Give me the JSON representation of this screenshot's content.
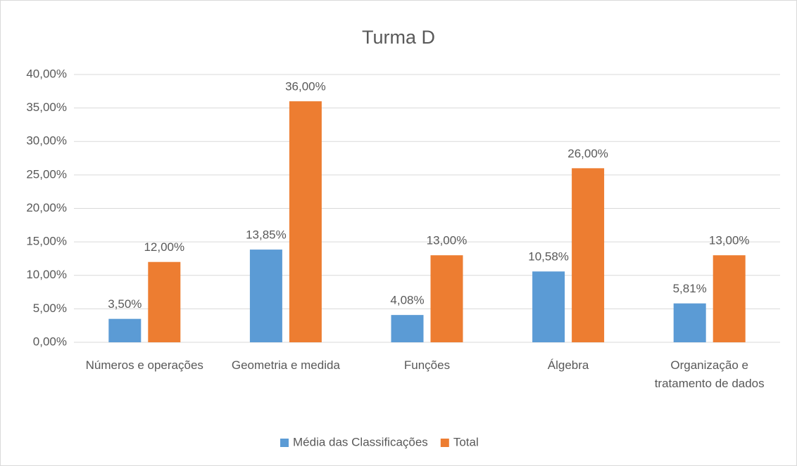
{
  "chart_data": {
    "type": "bar",
    "title": "Turma D",
    "categories": [
      "Números e operações",
      "Geometria e medida",
      "Funções",
      "Álgebra",
      "Organização e tratamento de dados"
    ],
    "series": [
      {
        "name": "Média das Classificações",
        "color": "#5b9bd5",
        "values": [
          3.5,
          13.85,
          4.08,
          10.58,
          5.81
        ],
        "value_labels": [
          "3,50%",
          "13,85%",
          "4,08%",
          "10,58%",
          "5,81%"
        ]
      },
      {
        "name": "Total",
        "color": "#ed7d31",
        "values": [
          12,
          36,
          13,
          26,
          13
        ],
        "value_labels": [
          "12,00%",
          "36,00%",
          "13,00%",
          "26,00%",
          "13,00%"
        ]
      }
    ],
    "ylim": [
      0,
      40
    ],
    "yticks": [
      {
        "value": 0,
        "label": "0,00%"
      },
      {
        "value": 5,
        "label": "5,00%"
      },
      {
        "value": 10,
        "label": "10,00%"
      },
      {
        "value": 15,
        "label": "15,00%"
      },
      {
        "value": 20,
        "label": "20,00%"
      },
      {
        "value": 25,
        "label": "25,00%"
      },
      {
        "value": 30,
        "label": "30,00%"
      },
      {
        "value": 35,
        "label": "35,00%"
      },
      {
        "value": 40,
        "label": "40,00%"
      }
    ],
    "grid": true,
    "legend": "bottom"
  }
}
